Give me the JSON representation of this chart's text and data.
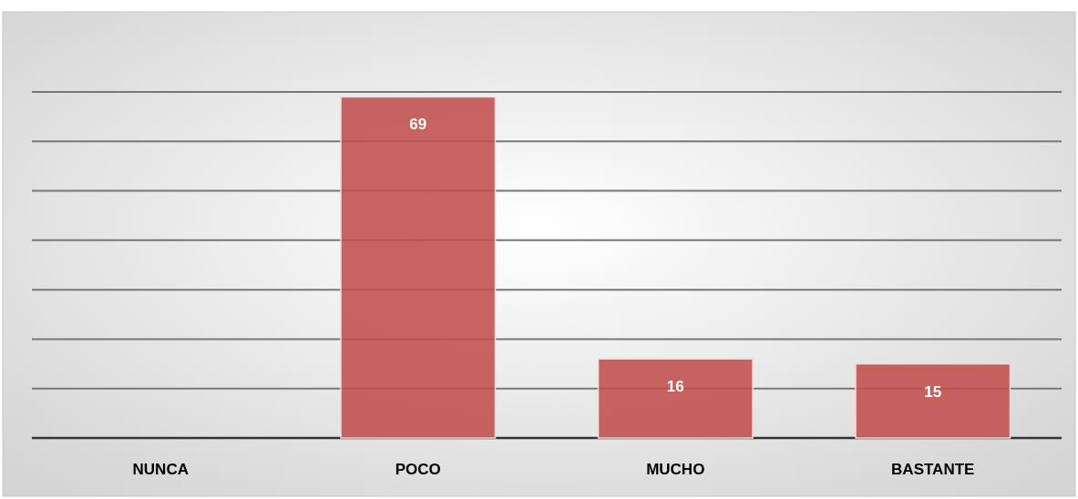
{
  "chart_data": {
    "type": "bar",
    "categories": [
      "NUNCA",
      "POCO",
      "MUCHO",
      "BASTANTE"
    ],
    "values": [
      0,
      69,
      16,
      15
    ],
    "color": "#c0504d",
    "value_labels": [
      null,
      "69",
      "16",
      "15"
    ],
    "ylim": [
      0,
      70
    ],
    "yticks": [
      {
        "value": 0,
        "label": null
      },
      {
        "value": 10,
        "label": null
      },
      {
        "value": 20,
        "label": null
      },
      {
        "value": 30,
        "label": null
      },
      {
        "value": 40,
        "label": null
      },
      {
        "value": 50,
        "label": null
      },
      {
        "value": 60,
        "label": null
      },
      {
        "value": 70,
        "label": null
      }
    ],
    "grid": "y",
    "tick_labels": "x"
  }
}
